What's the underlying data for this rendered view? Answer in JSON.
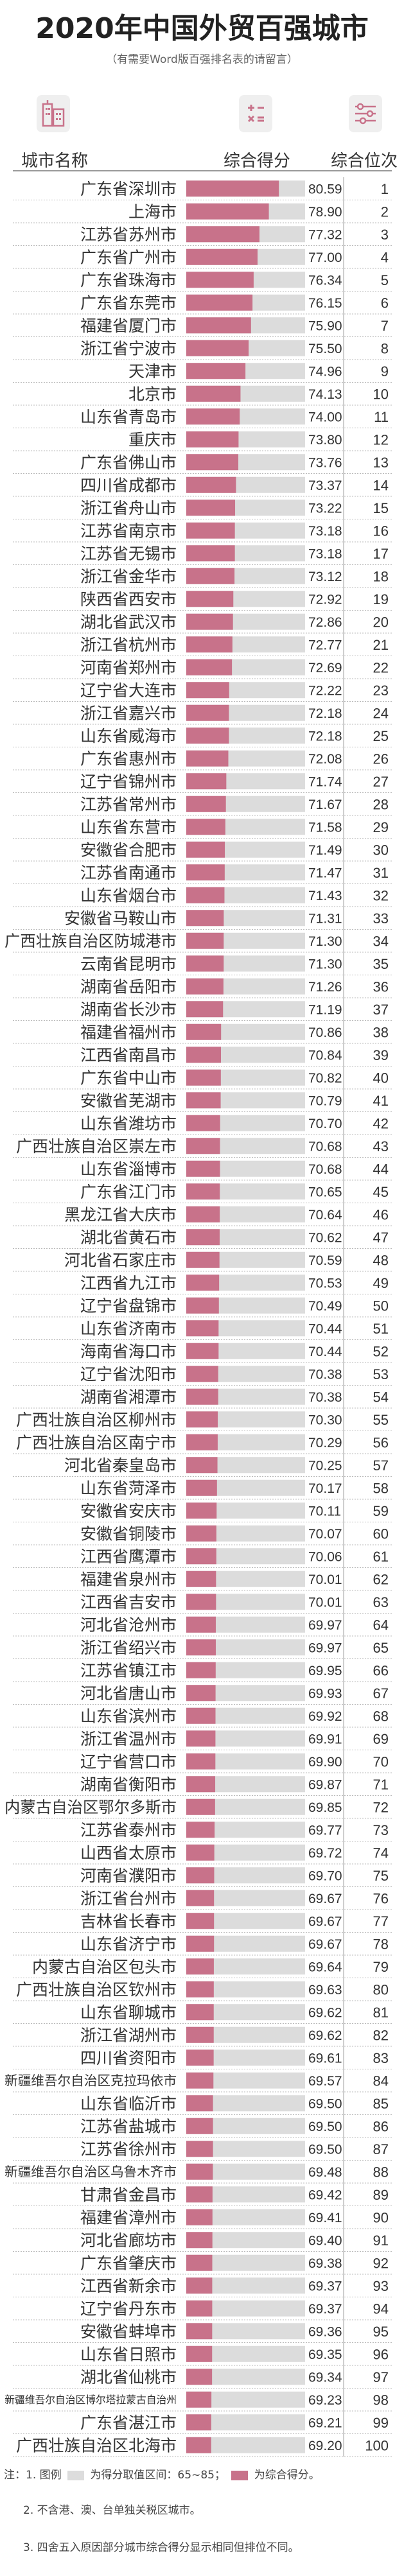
{
  "title": "2020年中国外贸百强城市",
  "subtitle": "（有需要Word版百强排名表的请留言）",
  "headers": {
    "city": "城市名称",
    "score": "综合得分",
    "rank": "综合位次"
  },
  "icons": {
    "city": "buildings-icon",
    "score": "calculator-icon",
    "rank": "sliders-icon"
  },
  "colors": {
    "bar": "#c8728a",
    "bar_grid": "#dcdcdc",
    "rank_line": "#9e9e9e",
    "accent_red": "#e0354a"
  },
  "notes": {
    "line1_prefix": "注：1. 图例",
    "legend_grid": "为得分取值区间：65~85；",
    "legend_bar": "为综合得分。",
    "line2": "2. 不含港、澳、台单独关税区城市。",
    "line3": "3. 四舍五入原因部分城市综合得分显示相同但排位不同。"
  },
  "chart_data": {
    "type": "bar",
    "title": "2020年中国外贸百强城市",
    "xlim": [
      65,
      85
    ],
    "rows": [
      {
        "city": "广东省深圳市",
        "score": 80.59,
        "rank": 1
      },
      {
        "city": "上海市",
        "score": 78.9,
        "rank": 2
      },
      {
        "city": "江苏省苏州市",
        "score": 77.32,
        "rank": 3
      },
      {
        "city": "广东省广州市",
        "score": 77.0,
        "rank": 4
      },
      {
        "city": "广东省珠海市",
        "score": 76.34,
        "rank": 5
      },
      {
        "city": "广东省东莞市",
        "score": 76.15,
        "rank": 6
      },
      {
        "city": "福建省厦门市",
        "score": 75.9,
        "rank": 7
      },
      {
        "city": "浙江省宁波市",
        "score": 75.5,
        "rank": 8
      },
      {
        "city": "天津市",
        "score": 74.96,
        "rank": 9
      },
      {
        "city": "北京市",
        "score": 74.13,
        "rank": 10
      },
      {
        "city": "山东省青岛市",
        "score": 74.0,
        "rank": 11
      },
      {
        "city": "重庆市",
        "score": 73.8,
        "rank": 12
      },
      {
        "city": "广东省佛山市",
        "score": 73.76,
        "rank": 13
      },
      {
        "city": "四川省成都市",
        "score": 73.37,
        "rank": 14
      },
      {
        "city": "浙江省舟山市",
        "score": 73.22,
        "rank": 15
      },
      {
        "city": "江苏省南京市",
        "score": 73.18,
        "rank": 16
      },
      {
        "city": "江苏省无锡市",
        "score": 73.18,
        "rank": 17
      },
      {
        "city": "浙江省金华市",
        "score": 73.12,
        "rank": 18
      },
      {
        "city": "陕西省西安市",
        "score": 72.92,
        "rank": 19
      },
      {
        "city": "湖北省武汉市",
        "score": 72.86,
        "rank": 20
      },
      {
        "city": "浙江省杭州市",
        "score": 72.77,
        "rank": 21
      },
      {
        "city": "河南省郑州市",
        "score": 72.69,
        "rank": 22
      },
      {
        "city": "辽宁省大连市",
        "score": 72.22,
        "rank": 23
      },
      {
        "city": "浙江省嘉兴市",
        "score": 72.18,
        "rank": 24
      },
      {
        "city": "山东省威海市",
        "score": 72.18,
        "rank": 25
      },
      {
        "city": "广东省惠州市",
        "score": 72.08,
        "rank": 26
      },
      {
        "city": "辽宁省锦州市",
        "score": 71.74,
        "rank": 27
      },
      {
        "city": "江苏省常州市",
        "score": 71.67,
        "rank": 28
      },
      {
        "city": "山东省东营市",
        "score": 71.58,
        "rank": 29
      },
      {
        "city": "安徽省合肥市",
        "score": 71.49,
        "rank": 30
      },
      {
        "city": "江苏省南通市",
        "score": 71.47,
        "rank": 31
      },
      {
        "city": "山东省烟台市",
        "score": 71.43,
        "rank": 32
      },
      {
        "city": "安徽省马鞍山市",
        "score": 71.31,
        "rank": 33
      },
      {
        "city": "广西壮族自治区防城港市",
        "score": 71.3,
        "rank": 34
      },
      {
        "city": "云南省昆明市",
        "score": 71.3,
        "rank": 35
      },
      {
        "city": "湖南省岳阳市",
        "score": 71.26,
        "rank": 36
      },
      {
        "city": "湖南省长沙市",
        "score": 71.19,
        "rank": 37
      },
      {
        "city": "福建省福州市",
        "score": 70.86,
        "rank": 38
      },
      {
        "city": "江西省南昌市",
        "score": 70.84,
        "rank": 39
      },
      {
        "city": "广东省中山市",
        "score": 70.82,
        "rank": 40
      },
      {
        "city": "安徽省芜湖市",
        "score": 70.79,
        "rank": 41
      },
      {
        "city": "山东省潍坊市",
        "score": 70.7,
        "rank": 42
      },
      {
        "city": "广西壮族自治区崇左市",
        "score": 70.68,
        "rank": 43
      },
      {
        "city": "山东省淄博市",
        "score": 70.68,
        "rank": 44
      },
      {
        "city": "广东省江门市",
        "score": 70.65,
        "rank": 45
      },
      {
        "city": "黑龙江省大庆市",
        "score": 70.64,
        "rank": 46
      },
      {
        "city": "湖北省黄石市",
        "score": 70.62,
        "rank": 47
      },
      {
        "city": "河北省石家庄市",
        "score": 70.59,
        "rank": 48
      },
      {
        "city": "江西省九江市",
        "score": 70.53,
        "rank": 49
      },
      {
        "city": "辽宁省盘锦市",
        "score": 70.49,
        "rank": 50
      },
      {
        "city": "山东省济南市",
        "score": 70.44,
        "rank": 51
      },
      {
        "city": "海南省海口市",
        "score": 70.44,
        "rank": 52
      },
      {
        "city": "辽宁省沈阳市",
        "score": 70.38,
        "rank": 53
      },
      {
        "city": "湖南省湘潭市",
        "score": 70.38,
        "rank": 54
      },
      {
        "city": "广西壮族自治区柳州市",
        "score": 70.3,
        "rank": 55
      },
      {
        "city": "广西壮族自治区南宁市",
        "score": 70.29,
        "rank": 56
      },
      {
        "city": "河北省秦皇岛市",
        "score": 70.25,
        "rank": 57
      },
      {
        "city": "山东省菏泽市",
        "score": 70.17,
        "rank": 58
      },
      {
        "city": "安徽省安庆市",
        "score": 70.11,
        "rank": 59
      },
      {
        "city": "安徽省铜陵市",
        "score": 70.07,
        "rank": 60
      },
      {
        "city": "江西省鹰潭市",
        "score": 70.06,
        "rank": 61
      },
      {
        "city": "福建省泉州市",
        "score": 70.01,
        "rank": 62
      },
      {
        "city": "江西省吉安市",
        "score": 70.01,
        "rank": 63
      },
      {
        "city": "河北省沧州市",
        "score": 69.97,
        "rank": 64
      },
      {
        "city": "浙江省绍兴市",
        "score": 69.97,
        "rank": 65
      },
      {
        "city": "江苏省镇江市",
        "score": 69.95,
        "rank": 66
      },
      {
        "city": "河北省唐山市",
        "score": 69.93,
        "rank": 67
      },
      {
        "city": "山东省滨州市",
        "score": 69.92,
        "rank": 68
      },
      {
        "city": "浙江省温州市",
        "score": 69.91,
        "rank": 69
      },
      {
        "city": "辽宁省营口市",
        "score": 69.9,
        "rank": 70
      },
      {
        "city": "湖南省衡阳市",
        "score": 69.87,
        "rank": 71
      },
      {
        "city": "内蒙古自治区鄂尔多斯市",
        "score": 69.85,
        "rank": 72
      },
      {
        "city": "江苏省泰州市",
        "score": 69.77,
        "rank": 73
      },
      {
        "city": "山西省太原市",
        "score": 69.72,
        "rank": 74
      },
      {
        "city": "河南省濮阳市",
        "score": 69.7,
        "rank": 75
      },
      {
        "city": "浙江省台州市",
        "score": 69.67,
        "rank": 76
      },
      {
        "city": "吉林省长春市",
        "score": 69.67,
        "rank": 77
      },
      {
        "city": "山东省济宁市",
        "score": 69.67,
        "rank": 78
      },
      {
        "city": "内蒙古自治区包头市",
        "score": 69.64,
        "rank": 79
      },
      {
        "city": "广西壮族自治区钦州市",
        "score": 69.63,
        "rank": 80
      },
      {
        "city": "山东省聊城市",
        "score": 69.62,
        "rank": 81
      },
      {
        "city": "浙江省湖州市",
        "score": 69.62,
        "rank": 82
      },
      {
        "city": "四川省资阳市",
        "score": 69.61,
        "rank": 83
      },
      {
        "city": "新疆维吾尔自治区克拉玛依市",
        "score": 69.57,
        "rank": 84
      },
      {
        "city": "山东省临沂市",
        "score": 69.5,
        "rank": 85
      },
      {
        "city": "江苏省盐城市",
        "score": 69.5,
        "rank": 86
      },
      {
        "city": "江苏省徐州市",
        "score": 69.5,
        "rank": 87
      },
      {
        "city": "新疆维吾尔自治区乌鲁木齐市",
        "score": 69.48,
        "rank": 88
      },
      {
        "city": "甘肃省金昌市",
        "score": 69.42,
        "rank": 89
      },
      {
        "city": "福建省漳州市",
        "score": 69.41,
        "rank": 90
      },
      {
        "city": "河北省廊坊市",
        "score": 69.4,
        "rank": 91
      },
      {
        "city": "广东省肇庆市",
        "score": 69.38,
        "rank": 92
      },
      {
        "city": "江西省新余市",
        "score": 69.37,
        "rank": 93
      },
      {
        "city": "辽宁省丹东市",
        "score": 69.37,
        "rank": 94
      },
      {
        "city": "安徽省蚌埠市",
        "score": 69.36,
        "rank": 95
      },
      {
        "city": "山东省日照市",
        "score": 69.35,
        "rank": 96
      },
      {
        "city": "湖北省仙桃市",
        "score": 69.34,
        "rank": 97
      },
      {
        "city": "新疆维吾尔自治区博尔塔拉蒙古自治州",
        "score": 69.23,
        "rank": 98
      },
      {
        "city": "广东省湛江市",
        "score": 69.21,
        "rank": 99
      },
      {
        "city": "广西壮族自治区北海市",
        "score": 69.2,
        "rank": 100
      }
    ]
  }
}
